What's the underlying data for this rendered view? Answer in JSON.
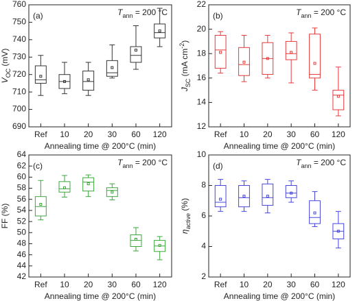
{
  "chart_data": [
    {
      "type": "box",
      "label": "(a)",
      "color": "#333333",
      "annotation": [
        {
          "text": "T",
          "style": "italic"
        },
        {
          "text": "ann",
          "style": "sub"
        },
        {
          "text": " = 200 °C"
        }
      ],
      "ylabel": [
        {
          "text": "V",
          "style": "italic"
        },
        {
          "text": "OC",
          "style": "sub"
        },
        {
          "text": " (mV)"
        }
      ],
      "xlabel": "Annealing time @ 200°C (min)",
      "categories": [
        "Ref",
        "10",
        "20",
        "30",
        "60",
        "120"
      ],
      "boxes": [
        {
          "low": 708,
          "q1": 715,
          "median": 717,
          "q3": 725,
          "high": 731,
          "mean": 719
        },
        {
          "low": 709,
          "q1": 712,
          "median": 716,
          "q3": 720,
          "high": 727,
          "mean": 716
        },
        {
          "low": 708,
          "q1": 711,
          "median": 716,
          "q3": 722,
          "high": 727,
          "mean": 717
        },
        {
          "low": 718,
          "q1": 719,
          "median": 721,
          "q3": 728,
          "high": 737,
          "mean": 724
        },
        {
          "low": 723,
          "q1": 727,
          "median": 731,
          "q3": 736,
          "high": 748,
          "mean": 734
        },
        {
          "low": 736,
          "q1": 741,
          "median": 744,
          "q3": 749,
          "high": 758,
          "mean": 745
        }
      ],
      "ylim": [
        690,
        760
      ],
      "yticks": [
        690,
        700,
        710,
        720,
        730,
        740,
        750,
        760
      ]
    },
    {
      "type": "box",
      "label": "(b)",
      "color": "#e8373a",
      "annotation": [
        {
          "text": "T",
          "style": "italic"
        },
        {
          "text": "ann",
          "style": "sub"
        },
        {
          "text": " = 200 °C"
        }
      ],
      "ylabel": [
        {
          "text": "J",
          "style": "italic"
        },
        {
          "text": "SC",
          "style": "sub"
        },
        {
          "text": " (mA cm"
        },
        {
          "text": "-2",
          "style": "sup"
        },
        {
          "text": ")"
        }
      ],
      "xlabel": "Annealing time @ 200°C (min)",
      "categories": [
        "Ref",
        "10",
        "20",
        "30",
        "60",
        "120"
      ],
      "boxes": [
        {
          "low": 16.4,
          "q1": 16.8,
          "median": 18.3,
          "q3": 19.5,
          "high": 19.8,
          "mean": 18.1
        },
        {
          "low": 15.7,
          "q1": 16.2,
          "median": 17.1,
          "q3": 18.5,
          "high": 19.5,
          "mean": 17.3
        },
        {
          "low": 16.0,
          "q1": 16.3,
          "median": 17.6,
          "q3": 18.9,
          "high": 19.5,
          "mean": 17.6
        },
        {
          "low": 15.6,
          "q1": 17.5,
          "median": 18.0,
          "q3": 19.0,
          "high": 19.7,
          "mean": 18.1
        },
        {
          "low": 15.0,
          "q1": 16.0,
          "median": 16.3,
          "q3": 19.6,
          "high": 20.1,
          "mean": 17.2
        },
        {
          "low": 12.9,
          "q1": 13.4,
          "median": 14.6,
          "q3": 15.0,
          "high": 16.9,
          "mean": 14.5
        }
      ],
      "ylim": [
        12,
        22
      ],
      "yticks": [
        12,
        14,
        16,
        18,
        20,
        22
      ]
    },
    {
      "type": "box",
      "label": "(c)",
      "color": "#3aa63a",
      "annotation": [
        {
          "text": "T",
          "style": "italic"
        },
        {
          "text": "ann",
          "style": "sub"
        },
        {
          "text": " = 200 °C"
        }
      ],
      "ylabel": [
        {
          "text": "FF (%)"
        }
      ],
      "xlabel": "Annealing time @ 200°C (min)",
      "categories": [
        "Ref",
        "10",
        "20",
        "30",
        "60",
        "120"
      ],
      "boxes": [
        {
          "low": 52.3,
          "q1": 53.0,
          "median": 54.7,
          "q3": 56.5,
          "high": 59.4,
          "mean": 55.1
        },
        {
          "low": 56.4,
          "q1": 57.3,
          "median": 57.9,
          "q3": 59.2,
          "high": 60.3,
          "mean": 58.1
        },
        {
          "low": 56.5,
          "q1": 57.5,
          "median": 59.1,
          "q3": 59.9,
          "high": 60.4,
          "mean": 58.8
        },
        {
          "low": 55.9,
          "q1": 56.5,
          "median": 57.6,
          "q3": 58.1,
          "high": 58.8,
          "mean": 57.3
        },
        {
          "low": 46.7,
          "q1": 47.5,
          "median": 48.6,
          "q3": 49.6,
          "high": 50.9,
          "mean": 48.8
        },
        {
          "low": 45.1,
          "q1": 46.6,
          "median": 47.6,
          "q3": 48.6,
          "high": 49.3,
          "mean": 47.7
        }
      ],
      "ylim": [
        42,
        64
      ],
      "yticks": [
        42,
        44,
        46,
        48,
        50,
        52,
        54,
        56,
        58,
        60,
        62,
        64
      ]
    },
    {
      "type": "box",
      "label": "(d)",
      "color": "#4444dd",
      "annotation": [
        {
          "text": "T",
          "style": "italic"
        },
        {
          "text": "ann",
          "style": "sub"
        },
        {
          "text": " = 200 °C"
        }
      ],
      "ylabel": [
        {
          "text": "η",
          "style": "italic"
        },
        {
          "text": "active",
          "style": "sub"
        },
        {
          "text": " (%)"
        }
      ],
      "xlabel": "Annealing time @ 200°C (min)",
      "categories": [
        "Ref",
        "10",
        "20",
        "30",
        "60",
        "120"
      ],
      "boxes": [
        {
          "low": 6.3,
          "q1": 6.6,
          "median": 6.9,
          "q3": 8.0,
          "high": 8.4,
          "mean": 7.1
        },
        {
          "low": 6.3,
          "q1": 6.6,
          "median": 7.2,
          "q3": 8.0,
          "high": 8.3,
          "mean": 7.3
        },
        {
          "low": 6.2,
          "q1": 6.7,
          "median": 7.2,
          "q3": 8.1,
          "high": 8.4,
          "mean": 7.3
        },
        {
          "low": 6.9,
          "q1": 7.2,
          "median": 7.5,
          "q3": 8.0,
          "high": 8.3,
          "mean": 7.5
        },
        {
          "low": 5.3,
          "q1": 5.5,
          "median": 5.9,
          "q3": 7.0,
          "high": 7.6,
          "mean": 6.2
        },
        {
          "low": 3.9,
          "q1": 4.5,
          "median": 5.0,
          "q3": 5.5,
          "high": 6.3,
          "mean": 5.0
        }
      ],
      "ylim": [
        2,
        10
      ],
      "yticks": [
        2,
        4,
        6,
        8,
        10
      ]
    }
  ]
}
